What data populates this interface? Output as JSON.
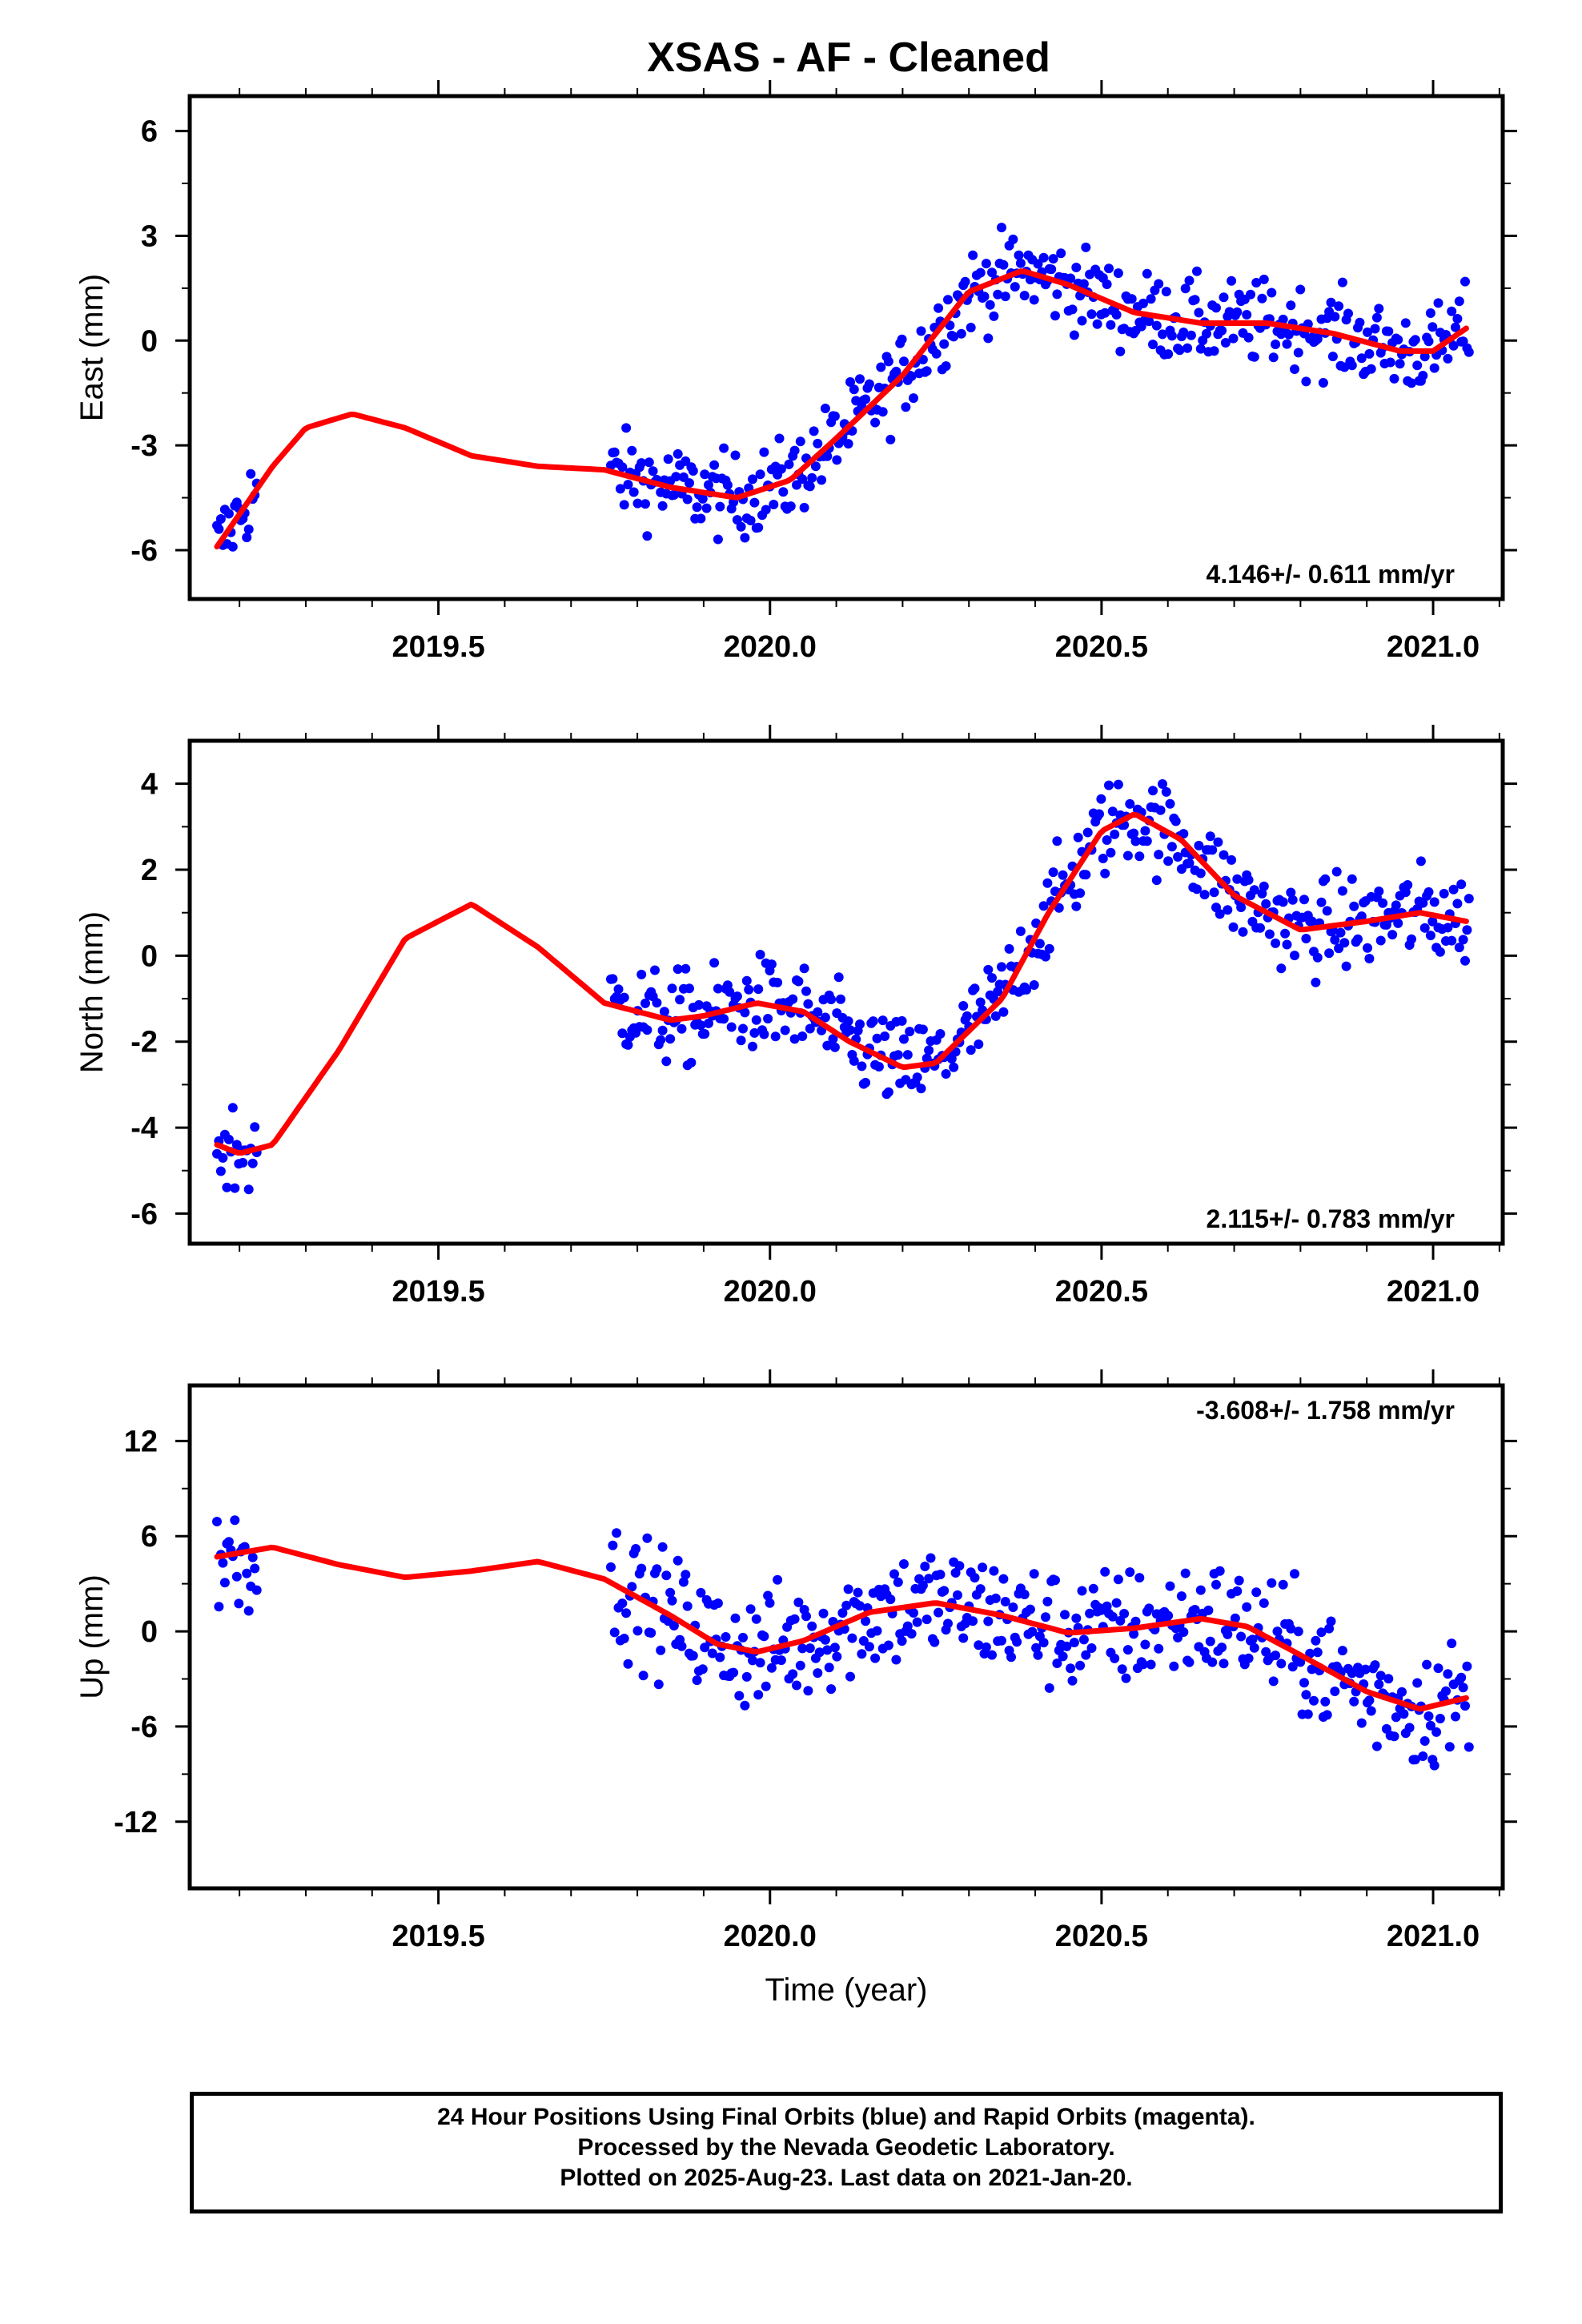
{
  "title": "XSAS  - AF - Cleaned",
  "footer": {
    "line1": "24 Hour Positions Using Final Orbits (blue) and Rapid Orbits (magenta).",
    "line2": "Processed by the Nevada Geodetic Laboratory.",
    "line3": "Plotted on 2025-Aug-23. Last data on 2021-Jan-20."
  },
  "colors": {
    "points": "#0000ff",
    "fit": "#ff0000",
    "frame": "#000000"
  },
  "chart_data": [
    {
      "type": "scatter",
      "ylabel": "East (mm)",
      "xlabel": "",
      "annotation": "4.146+/- 0.611 mm/yr",
      "annotation_position": "bottom-right",
      "xlim": [
        2019.125,
        2021.105
      ],
      "ylim": [
        -7.4,
        7.0
      ],
      "xticks": [
        2019.5,
        2020.0,
        2020.5,
        2021.0
      ],
      "xtick_labels": [
        "2019.5",
        "2020.0",
        "2020.5",
        "2021.0"
      ],
      "yticks": [
        -6,
        -3,
        0,
        3,
        6
      ],
      "ytick_labels": [
        "-6",
        "-3",
        "0",
        "3",
        "6"
      ],
      "grid": false,
      "fit": [
        [
          2019.166,
          -5.9
        ],
        [
          2019.25,
          -3.6
        ],
        [
          2019.3,
          -2.5
        ],
        [
          2019.37,
          -2.1
        ],
        [
          2019.45,
          -2.5
        ],
        [
          2019.55,
          -3.3
        ],
        [
          2019.65,
          -3.6
        ],
        [
          2019.75,
          -3.7
        ],
        [
          2019.85,
          -4.2
        ],
        [
          2019.95,
          -4.5
        ],
        [
          2020.03,
          -4.0
        ],
        [
          2020.1,
          -2.8
        ],
        [
          2020.2,
          -1.0
        ],
        [
          2020.3,
          1.4
        ],
        [
          2020.38,
          2.0
        ],
        [
          2020.45,
          1.6
        ],
        [
          2020.55,
          0.8
        ],
        [
          2020.65,
          0.5
        ],
        [
          2020.75,
          0.5
        ],
        [
          2020.85,
          0.2
        ],
        [
          2020.95,
          -0.3
        ],
        [
          2021.0,
          -0.3
        ],
        [
          2021.05,
          0.35
        ]
      ],
      "segments": [
        {
          "start": 2019.166,
          "end": 2019.226,
          "spread": 1.1
        },
        {
          "start": 2019.76,
          "end": 2021.054,
          "spread": 1.1
        }
      ]
    },
    {
      "type": "scatter",
      "ylabel": "North (mm)",
      "xlabel": "",
      "annotation": "2.115+/- 0.783 mm/yr",
      "annotation_position": "bottom-right",
      "xlim": [
        2019.125,
        2021.105
      ],
      "ylim": [
        -6.7,
        5.0
      ],
      "xticks": [
        2019.5,
        2020.0,
        2020.5,
        2021.0
      ],
      "xtick_labels": [
        "2019.5",
        "2020.0",
        "2020.5",
        "2021.0"
      ],
      "yticks": [
        -6,
        -4,
        -2,
        0,
        2,
        4
      ],
      "ytick_labels": [
        "-6",
        "-4",
        "-2",
        "0",
        "2",
        "4"
      ],
      "grid": false,
      "fit": [
        [
          2019.166,
          -4.4
        ],
        [
          2019.2,
          -4.6
        ],
        [
          2019.25,
          -4.4
        ],
        [
          2019.35,
          -2.2
        ],
        [
          2019.45,
          0.4
        ],
        [
          2019.55,
          1.2
        ],
        [
          2019.65,
          0.2
        ],
        [
          2019.75,
          -1.1
        ],
        [
          2019.85,
          -1.5
        ],
        [
          2019.9,
          -1.4
        ],
        [
          2019.98,
          -1.1
        ],
        [
          2020.05,
          -1.3
        ],
        [
          2020.12,
          -2.0
        ],
        [
          2020.2,
          -2.6
        ],
        [
          2020.25,
          -2.5
        ],
        [
          2020.35,
          -1.0
        ],
        [
          2020.42,
          1.0
        ],
        [
          2020.5,
          2.9
        ],
        [
          2020.55,
          3.3
        ],
        [
          2020.62,
          2.7
        ],
        [
          2020.7,
          1.4
        ],
        [
          2020.8,
          0.6
        ],
        [
          2020.9,
          0.8
        ],
        [
          2020.98,
          1.0
        ],
        [
          2021.05,
          0.8
        ]
      ],
      "segments": [
        {
          "start": 2019.166,
          "end": 2019.226,
          "spread": 1.1
        },
        {
          "start": 2019.76,
          "end": 2021.054,
          "spread": 1.0
        }
      ]
    },
    {
      "type": "scatter",
      "ylabel": "Up (mm)",
      "xlabel": "Time (year)",
      "annotation": "-3.608+/- 1.758 mm/yr",
      "annotation_position": "top-right",
      "xlim": [
        2019.125,
        2021.105
      ],
      "ylim": [
        -16.2,
        15.5
      ],
      "xticks": [
        2019.5,
        2020.0,
        2020.5,
        2021.0
      ],
      "xtick_labels": [
        "2019.5",
        "2020.0",
        "2020.5",
        "2021.0"
      ],
      "yticks": [
        -12,
        -6,
        0,
        6,
        12
      ],
      "ytick_labels": [
        "-12",
        "-6",
        "0",
        "6",
        "12"
      ],
      "grid": false,
      "fit": [
        [
          2019.166,
          4.7
        ],
        [
          2019.25,
          5.3
        ],
        [
          2019.35,
          4.2
        ],
        [
          2019.45,
          3.4
        ],
        [
          2019.55,
          3.8
        ],
        [
          2019.65,
          4.4
        ],
        [
          2019.75,
          3.3
        ],
        [
          2019.85,
          1.0
        ],
        [
          2019.92,
          -0.8
        ],
        [
          2019.98,
          -1.3
        ],
        [
          2020.05,
          -0.6
        ],
        [
          2020.15,
          1.2
        ],
        [
          2020.25,
          1.8
        ],
        [
          2020.35,
          1.0
        ],
        [
          2020.45,
          -0.1
        ],
        [
          2020.55,
          0.2
        ],
        [
          2020.65,
          0.8
        ],
        [
          2020.72,
          0.3
        ],
        [
          2020.8,
          -1.5
        ],
        [
          2020.9,
          -3.8
        ],
        [
          2020.98,
          -4.9
        ],
        [
          2021.05,
          -4.2
        ]
      ],
      "segments": [
        {
          "start": 2019.166,
          "end": 2019.226,
          "spread": 3.5
        },
        {
          "start": 2019.76,
          "end": 2021.054,
          "spread": 3.5
        }
      ]
    }
  ]
}
